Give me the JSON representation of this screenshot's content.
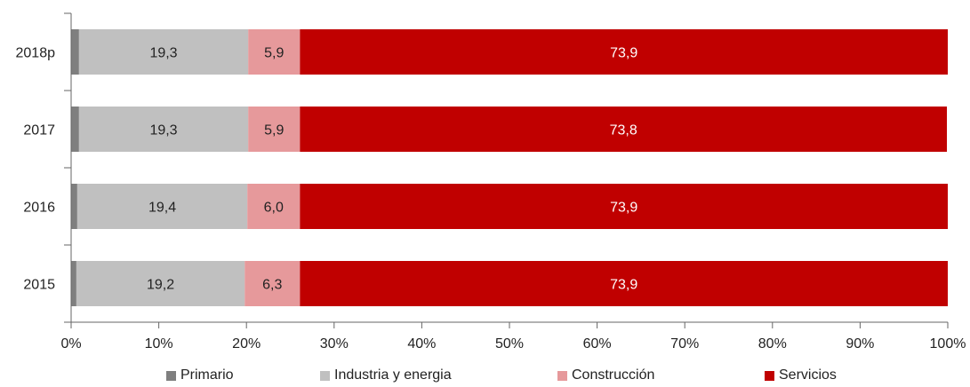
{
  "chart_data": {
    "type": "bar",
    "orientation": "horizontal",
    "stacked": "percent",
    "categories": [
      "2018p",
      "2017",
      "2016",
      "2015"
    ],
    "series": [
      {
        "name": "Primario",
        "color": "#7f7f7f",
        "values": [
          0.9,
          0.9,
          0.7,
          0.6
        ],
        "labels": [
          "",
          "",
          "",
          ""
        ]
      },
      {
        "name": "Industria y energia",
        "color": "#c0c0c0",
        "values": [
          19.3,
          19.3,
          19.4,
          19.2
        ],
        "labels": [
          "19,3",
          "19,3",
          "19,4",
          "19,2"
        ]
      },
      {
        "name": "Construcción",
        "color": "#e6999b",
        "values": [
          5.9,
          5.9,
          6.0,
          6.3
        ],
        "labels": [
          "5,9",
          "5,9",
          "6,0",
          "6,3"
        ]
      },
      {
        "name": "Servicios",
        "color": "#c00000",
        "values": [
          73.9,
          73.8,
          73.9,
          73.9
        ],
        "labels": [
          "73,9",
          "73,8",
          "73,9",
          "73,9"
        ]
      }
    ],
    "x_ticks": [
      "0%",
      "10%",
      "20%",
      "30%",
      "40%",
      "50%",
      "60%",
      "70%",
      "80%",
      "90%",
      "100%"
    ],
    "xlim": [
      0,
      100
    ],
    "legend_position": "bottom",
    "grid": false
  }
}
